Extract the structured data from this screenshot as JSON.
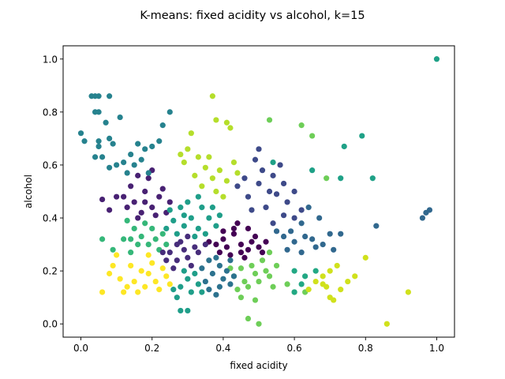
{
  "chart_data": {
    "type": "scatter",
    "title": "K-means: fixed acidity vs alcohol, k=15",
    "xlabel": "fixed acidity",
    "ylabel": "alcohol",
    "xlim": [
      -0.05,
      1.05
    ],
    "ylim": [
      -0.05,
      1.05
    ],
    "xticks": [
      0.0,
      0.2,
      0.4,
      0.6,
      0.8,
      1.0
    ],
    "yticks": [
      0.0,
      0.2,
      0.4,
      0.6,
      0.8,
      1.0
    ],
    "xtick_labels": [
      "0.0",
      "0.2",
      "0.4",
      "0.6",
      "0.8",
      "1.0"
    ],
    "ytick_labels": [
      "0.0",
      "0.2",
      "0.4",
      "0.6",
      "0.8",
      "1.0"
    ],
    "grid": false,
    "legend": "none",
    "colormap": "viridis",
    "clusters": [
      {
        "color": "#440154",
        "points": [
          [
            0.43,
            0.34
          ],
          [
            0.45,
            0.3
          ],
          [
            0.47,
            0.28
          ],
          [
            0.4,
            0.32
          ],
          [
            0.38,
            0.3
          ],
          [
            0.42,
            0.26
          ],
          [
            0.44,
            0.38
          ],
          [
            0.47,
            0.36
          ],
          [
            0.49,
            0.33
          ],
          [
            0.5,
            0.29
          ],
          [
            0.41,
            0.29
          ],
          [
            0.39,
            0.27
          ],
          [
            0.46,
            0.25
          ],
          [
            0.52,
            0.31
          ],
          [
            0.36,
            0.31
          ],
          [
            0.43,
            0.36
          ],
          [
            0.48,
            0.31
          ],
          [
            0.45,
            0.27
          ],
          [
            0.4,
            0.35
          ],
          [
            0.51,
            0.27
          ]
        ]
      },
      {
        "color": "#482173",
        "points": [
          [
            0.15,
            0.46
          ],
          [
            0.18,
            0.5
          ],
          [
            0.2,
            0.44
          ],
          [
            0.22,
            0.48
          ],
          [
            0.17,
            0.42
          ],
          [
            0.14,
            0.52
          ],
          [
            0.19,
            0.55
          ],
          [
            0.23,
            0.51
          ],
          [
            0.16,
            0.4
          ],
          [
            0.21,
            0.41
          ],
          [
            0.25,
            0.46
          ],
          [
            0.13,
            0.44
          ],
          [
            0.12,
            0.48
          ],
          [
            0.2,
            0.58
          ],
          [
            0.24,
            0.42
          ],
          [
            0.18,
            0.46
          ],
          [
            0.16,
            0.56
          ],
          [
            0.1,
            0.48
          ],
          [
            0.08,
            0.43
          ],
          [
            0.06,
            0.47
          ]
        ]
      },
      {
        "color": "#3e4a89",
        "points": [
          [
            0.51,
            0.58
          ],
          [
            0.54,
            0.56
          ],
          [
            0.57,
            0.53
          ],
          [
            0.5,
            0.53
          ],
          [
            0.47,
            0.48
          ],
          [
            0.52,
            0.44
          ],
          [
            0.55,
            0.49
          ],
          [
            0.58,
            0.46
          ],
          [
            0.6,
            0.4
          ],
          [
            0.46,
            0.55
          ],
          [
            0.49,
            0.62
          ],
          [
            0.56,
            0.6
          ],
          [
            0.48,
            0.43
          ],
          [
            0.53,
            0.5
          ],
          [
            0.44,
            0.52
          ],
          [
            0.6,
            0.5
          ],
          [
            0.62,
            0.43
          ],
          [
            0.5,
            0.66
          ],
          [
            0.54,
            0.38
          ],
          [
            0.57,
            0.41
          ]
        ]
      },
      {
        "color": "#31688e",
        "points": [
          [
            0.57,
            0.33
          ],
          [
            0.6,
            0.31
          ],
          [
            0.63,
            0.33
          ],
          [
            0.66,
            0.29
          ],
          [
            0.59,
            0.35
          ],
          [
            0.62,
            0.27
          ],
          [
            0.65,
            0.32
          ],
          [
            0.68,
            0.3
          ],
          [
            0.7,
            0.34
          ],
          [
            0.62,
            0.38
          ],
          [
            0.64,
            0.44
          ],
          [
            0.67,
            0.4
          ],
          [
            0.58,
            0.28
          ],
          [
            0.71,
            0.28
          ],
          [
            0.73,
            0.34
          ],
          [
            0.83,
            0.37
          ],
          [
            0.97,
            0.42
          ],
          [
            0.96,
            0.4
          ],
          [
            0.98,
            0.43
          ],
          [
            0.55,
            0.35
          ]
        ]
      },
      {
        "color": "#26828e",
        "points": [
          [
            0.03,
            0.86
          ],
          [
            0.04,
            0.86
          ],
          [
            0.05,
            0.86
          ],
          [
            0.08,
            0.86
          ],
          [
            0.04,
            0.8
          ],
          [
            0.05,
            0.8
          ],
          [
            0.07,
            0.76
          ],
          [
            0.11,
            0.78
          ],
          [
            0.0,
            0.72
          ],
          [
            0.01,
            0.69
          ],
          [
            0.05,
            0.69
          ],
          [
            0.05,
            0.67
          ],
          [
            0.08,
            0.7
          ],
          [
            0.09,
            0.68
          ],
          [
            0.04,
            0.63
          ],
          [
            0.06,
            0.63
          ],
          [
            0.08,
            0.59
          ],
          [
            0.12,
            0.61
          ],
          [
            0.14,
            0.64
          ],
          [
            0.16,
            0.68
          ],
          [
            0.18,
            0.66
          ],
          [
            0.2,
            0.67
          ],
          [
            0.22,
            0.69
          ],
          [
            0.25,
            0.8
          ],
          [
            0.23,
            0.75
          ],
          [
            0.15,
            0.6
          ],
          [
            0.17,
            0.62
          ],
          [
            0.1,
            0.6
          ],
          [
            0.13,
            0.57
          ],
          [
            0.19,
            0.57
          ]
        ]
      },
      {
        "color": "#1f9e89",
        "points": [
          [
            0.28,
            0.44
          ],
          [
            0.31,
            0.4
          ],
          [
            0.33,
            0.36
          ],
          [
            0.29,
            0.37
          ],
          [
            0.26,
            0.39
          ],
          [
            0.34,
            0.44
          ],
          [
            0.36,
            0.4
          ],
          [
            0.38,
            0.37
          ],
          [
            0.27,
            0.34
          ],
          [
            0.32,
            0.33
          ],
          [
            0.3,
            0.46
          ],
          [
            0.35,
            0.34
          ],
          [
            0.25,
            0.43
          ],
          [
            0.37,
            0.44
          ],
          [
            0.39,
            0.41
          ],
          [
            0.33,
            0.48
          ],
          [
            0.29,
            0.41
          ],
          [
            0.24,
            0.36
          ],
          [
            0.28,
            0.14
          ],
          [
            0.31,
            0.12
          ],
          [
            0.33,
            0.15
          ],
          [
            0.27,
            0.1
          ],
          [
            0.3,
            0.17
          ],
          [
            0.26,
            0.13
          ],
          [
            0.34,
            0.12
          ],
          [
            0.29,
            0.2
          ],
          [
            0.32,
            0.19
          ],
          [
            0.28,
            0.05
          ],
          [
            0.3,
            0.05
          ]
        ]
      },
      {
        "color": "#35b779",
        "points": [
          [
            0.19,
            0.3
          ],
          [
            0.21,
            0.32
          ],
          [
            0.23,
            0.34
          ],
          [
            0.2,
            0.36
          ],
          [
            0.17,
            0.33
          ],
          [
            0.16,
            0.3
          ],
          [
            0.14,
            0.32
          ],
          [
            0.22,
            0.28
          ],
          [
            0.18,
            0.38
          ],
          [
            0.15,
            0.36
          ],
          [
            0.24,
            0.3
          ],
          [
            0.12,
            0.32
          ],
          [
            0.14,
            0.27
          ],
          [
            0.09,
            0.28
          ],
          [
            0.06,
            0.32
          ],
          [
            0.13,
            0.39
          ]
        ]
      },
      {
        "color": "#6ece58",
        "points": [
          [
            0.43,
            0.18
          ],
          [
            0.46,
            0.16
          ],
          [
            0.49,
            0.19
          ],
          [
            0.45,
            0.21
          ],
          [
            0.47,
            0.14
          ],
          [
            0.5,
            0.16
          ],
          [
            0.52,
            0.2
          ],
          [
            0.44,
            0.13
          ],
          [
            0.48,
            0.22
          ],
          [
            0.51,
            0.24
          ],
          [
            0.53,
            0.18
          ],
          [
            0.42,
            0.21
          ],
          [
            0.49,
            0.09
          ],
          [
            0.47,
            0.02
          ],
          [
            0.5,
            0.0
          ],
          [
            0.45,
            0.1
          ],
          [
            0.54,
            0.14
          ],
          [
            0.55,
            0.22
          ],
          [
            0.53,
            0.27
          ],
          [
            0.6,
            0.12
          ],
          [
            0.63,
            0.12
          ],
          [
            0.58,
            0.15
          ],
          [
            0.65,
            0.71
          ],
          [
            0.62,
            0.75
          ],
          [
            0.69,
            0.55
          ],
          [
            0.53,
            0.77
          ]
        ]
      },
      {
        "color": "#b5de2b",
        "points": [
          [
            0.3,
            0.66
          ],
          [
            0.33,
            0.63
          ],
          [
            0.35,
            0.59
          ],
          [
            0.32,
            0.56
          ],
          [
            0.29,
            0.61
          ],
          [
            0.37,
            0.55
          ],
          [
            0.34,
            0.52
          ],
          [
            0.39,
            0.58
          ],
          [
            0.41,
            0.54
          ],
          [
            0.31,
            0.72
          ],
          [
            0.36,
            0.63
          ],
          [
            0.43,
            0.61
          ],
          [
            0.37,
            0.86
          ],
          [
            0.38,
            0.77
          ],
          [
            0.41,
            0.76
          ],
          [
            0.42,
            0.74
          ],
          [
            0.38,
            0.5
          ],
          [
            0.28,
            0.64
          ],
          [
            0.4,
            0.48
          ],
          [
            0.44,
            0.57
          ]
        ]
      },
      {
        "color": "#fde725",
        "points": [
          [
            0.19,
            0.19
          ],
          [
            0.21,
            0.16
          ],
          [
            0.23,
            0.21
          ],
          [
            0.18,
            0.14
          ],
          [
            0.2,
            0.23
          ],
          [
            0.22,
            0.13
          ],
          [
            0.24,
            0.18
          ],
          [
            0.17,
            0.2
          ],
          [
            0.15,
            0.16
          ],
          [
            0.13,
            0.14
          ],
          [
            0.11,
            0.17
          ],
          [
            0.16,
            0.12
          ],
          [
            0.14,
            0.22
          ],
          [
            0.08,
            0.19
          ],
          [
            0.09,
            0.22
          ],
          [
            0.1,
            0.26
          ],
          [
            0.06,
            0.12
          ],
          [
            0.25,
            0.15
          ],
          [
            0.12,
            0.12
          ],
          [
            0.19,
            0.26
          ]
        ]
      },
      {
        "color": "#d0e11c",
        "points": [
          [
            0.68,
            0.18
          ],
          [
            0.7,
            0.2
          ],
          [
            0.72,
            0.22
          ],
          [
            0.66,
            0.16
          ],
          [
            0.69,
            0.14
          ],
          [
            0.73,
            0.13
          ],
          [
            0.7,
            0.1
          ],
          [
            0.75,
            0.16
          ],
          [
            0.77,
            0.18
          ],
          [
            0.64,
            0.13
          ],
          [
            0.71,
            0.09
          ],
          [
            0.8,
            0.25
          ],
          [
            0.86,
            0.0
          ],
          [
            0.92,
            0.12
          ],
          [
            0.68,
            0.15
          ]
        ]
      },
      {
        "color": "#1fa187",
        "points": [
          [
            0.54,
            0.61
          ],
          [
            0.65,
            0.58
          ],
          [
            0.74,
            0.67
          ],
          [
            0.73,
            0.55
          ],
          [
            0.82,
            0.55
          ],
          [
            0.79,
            0.71
          ],
          [
            1.0,
            1.0
          ]
        ]
      },
      {
        "color": "#2c728e",
        "points": [
          [
            0.35,
            0.16
          ],
          [
            0.37,
            0.19
          ],
          [
            0.39,
            0.22
          ],
          [
            0.36,
            0.13
          ],
          [
            0.4,
            0.17
          ],
          [
            0.38,
            0.11
          ],
          [
            0.41,
            0.2
          ],
          [
            0.42,
            0.15
          ],
          [
            0.36,
            0.24
          ],
          [
            0.39,
            0.14
          ],
          [
            0.34,
            0.21
          ],
          [
            0.38,
            0.25
          ],
          [
            0.42,
            0.24
          ],
          [
            0.43,
            0.18
          ]
        ]
      },
      {
        "color": "#472d7b",
        "points": [
          [
            0.25,
            0.27
          ],
          [
            0.27,
            0.24
          ],
          [
            0.29,
            0.28
          ],
          [
            0.26,
            0.21
          ],
          [
            0.28,
            0.31
          ],
          [
            0.3,
            0.25
          ],
          [
            0.32,
            0.29
          ],
          [
            0.24,
            0.24
          ],
          [
            0.27,
            0.3
          ],
          [
            0.31,
            0.22
          ],
          [
            0.33,
            0.27
          ],
          [
            0.35,
            0.3
          ],
          [
            0.23,
            0.27
          ],
          [
            0.3,
            0.33
          ]
        ]
      },
      {
        "color": "#22a884",
        "points": [
          [
            0.6,
            0.2
          ],
          [
            0.62,
            0.15
          ],
          [
            0.6,
            0.12
          ],
          [
            0.63,
            0.18
          ],
          [
            0.66,
            0.2
          ]
        ]
      }
    ]
  }
}
